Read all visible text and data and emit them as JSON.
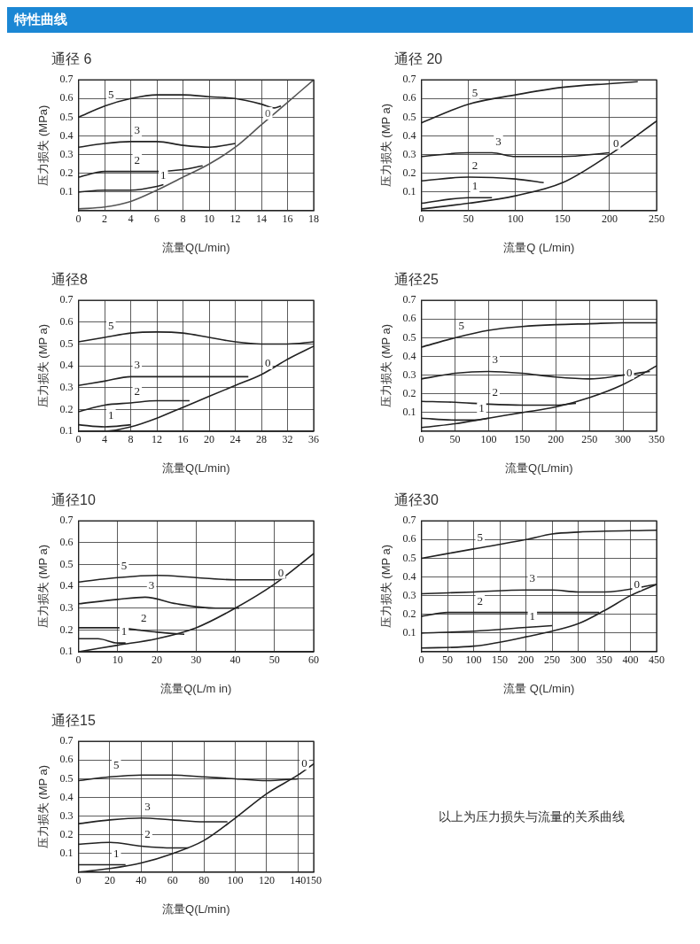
{
  "chart_data": [
    {
      "type": "other",
      "title": "特性曲线"
    },
    {
      "type": "line",
      "title": "通径 6",
      "xlabel": "流量Q(L/min)",
      "ylabel": "压力损失 (MPa)",
      "xlim": [
        0,
        18
      ],
      "xticks": [
        0,
        2,
        4,
        6,
        8,
        10,
        12,
        14,
        16,
        18
      ],
      "ylim": [
        0,
        0.7
      ],
      "yticks": [
        0.1,
        0.2,
        0.3,
        0.4,
        0.5,
        0.6,
        0.7
      ],
      "grid": true,
      "marker": "none",
      "series": [
        {
          "name": "5",
          "color": "#222222",
          "x": [
            0,
            2,
            4,
            6,
            8,
            10,
            12,
            14,
            15,
            15.5
          ],
          "values": [
            0.5,
            0.56,
            0.6,
            0.62,
            0.62,
            0.61,
            0.6,
            0.57,
            0.55,
            0.56
          ]
        },
        {
          "name": "3",
          "color": "#222222",
          "x": [
            0,
            2,
            4,
            6,
            8,
            10,
            12
          ],
          "values": [
            0.34,
            0.36,
            0.37,
            0.37,
            0.35,
            0.34,
            0.36
          ]
        },
        {
          "name": "2",
          "color": "#222222",
          "x": [
            0,
            2,
            4,
            6,
            8,
            9.5
          ],
          "values": [
            0.18,
            0.21,
            0.21,
            0.21,
            0.22,
            0.24
          ]
        },
        {
          "name": "1",
          "color": "#222222",
          "x": [
            0,
            2,
            4,
            6,
            6.5
          ],
          "values": [
            0.1,
            0.11,
            0.11,
            0.13,
            0.14
          ]
        },
        {
          "name": "0",
          "color": "#555555",
          "x": [
            0,
            2,
            4,
            6,
            8,
            10,
            12,
            14,
            16,
            18
          ],
          "values": [
            0.01,
            0.02,
            0.05,
            0.11,
            0.18,
            0.25,
            0.34,
            0.46,
            0.58,
            0.7
          ]
        }
      ]
    },
    {
      "type": "line",
      "title": "通径 20",
      "xlabel": "流量Q (L/min)",
      "ylabel": "压力损失 (MP a)",
      "xlim": [
        0,
        250
      ],
      "xticks": [
        0,
        50,
        100,
        150,
        200,
        250
      ],
      "ylim": [
        0,
        0.7
      ],
      "yticks": [
        0.1,
        0.2,
        0.3,
        0.4,
        0.5,
        0.6,
        0.7
      ],
      "grid": true,
      "marker": "none",
      "series": [
        {
          "name": "5",
          "color": "#222222",
          "x": [
            0,
            50,
            100,
            150,
            200,
            230
          ],
          "values": [
            0.47,
            0.57,
            0.62,
            0.66,
            0.68,
            0.69
          ]
        },
        {
          "name": "3",
          "color": "#222222",
          "x": [
            0,
            50,
            75,
            100,
            150,
            200
          ],
          "values": [
            0.29,
            0.31,
            0.31,
            0.29,
            0.29,
            0.31
          ]
        },
        {
          "name": "2",
          "color": "#222222",
          "x": [
            0,
            50,
            100,
            130
          ],
          "values": [
            0.16,
            0.18,
            0.17,
            0.15
          ]
        },
        {
          "name": "1",
          "color": "#222222",
          "x": [
            0,
            50,
            75
          ],
          "values": [
            0.04,
            0.07,
            0.07
          ]
        },
        {
          "name": "0",
          "color": "#222222",
          "x": [
            0,
            50,
            100,
            150,
            200,
            250
          ],
          "values": [
            0.01,
            0.04,
            0.08,
            0.15,
            0.3,
            0.48
          ]
        }
      ]
    },
    {
      "type": "line",
      "title": "通径8",
      "xlabel": "流量Q(L/min)",
      "ylabel": "压力损失 (MP a)",
      "xlim": [
        0,
        36
      ],
      "xticks": [
        0,
        4,
        8,
        12,
        16,
        20,
        24,
        28,
        32,
        36
      ],
      "ylim": [
        0.1,
        0.7
      ],
      "yticks": [
        0.1,
        0.2,
        0.3,
        0.4,
        0.5,
        0.6,
        0.7
      ],
      "grid": true,
      "marker": "none",
      "series": [
        {
          "name": "5",
          "color": "#222222",
          "x": [
            0,
            4,
            8,
            12,
            16,
            20,
            24,
            28,
            32,
            36
          ],
          "values": [
            0.51,
            0.53,
            0.55,
            0.555,
            0.55,
            0.53,
            0.51,
            0.5,
            0.5,
            0.51
          ]
        },
        {
          "name": "3",
          "color": "#222222",
          "x": [
            0,
            4,
            8,
            12,
            20,
            26
          ],
          "values": [
            0.31,
            0.33,
            0.35,
            0.35,
            0.35,
            0.35
          ]
        },
        {
          "name": "2",
          "color": "#222222",
          "x": [
            0,
            4,
            8,
            12,
            17
          ],
          "values": [
            0.19,
            0.22,
            0.23,
            0.24,
            0.24
          ]
        },
        {
          "name": "1",
          "color": "#222222",
          "x": [
            0,
            4,
            8
          ],
          "values": [
            0.13,
            0.12,
            0.13
          ]
        },
        {
          "name": "0",
          "color": "#222222",
          "x": [
            0,
            4,
            8,
            12,
            16,
            20,
            24,
            28,
            32,
            36
          ],
          "values": [
            0.1,
            0.1,
            0.12,
            0.16,
            0.21,
            0.26,
            0.31,
            0.36,
            0.43,
            0.49
          ]
        }
      ]
    },
    {
      "type": "line",
      "title": "通径25",
      "xlabel": "流量Q(L/min)",
      "ylabel": "压力损失 (MP a)",
      "xlim": [
        0,
        350
      ],
      "xticks": [
        0,
        50,
        100,
        150,
        200,
        250,
        300,
        350
      ],
      "ylim": [
        0,
        0.7
      ],
      "yticks": [
        0.1,
        0.2,
        0.3,
        0.4,
        0.5,
        0.6,
        0.7
      ],
      "grid": true,
      "marker": "none",
      "series": [
        {
          "name": "5",
          "color": "#222222",
          "x": [
            0,
            50,
            100,
            150,
            200,
            250,
            300,
            350
          ],
          "values": [
            0.45,
            0.5,
            0.54,
            0.56,
            0.57,
            0.575,
            0.58,
            0.58
          ]
        },
        {
          "name": "3",
          "color": "#222222",
          "x": [
            0,
            50,
            100,
            150,
            200,
            250,
            300,
            340
          ],
          "values": [
            0.28,
            0.31,
            0.32,
            0.31,
            0.29,
            0.28,
            0.3,
            0.32
          ]
        },
        {
          "name": "2",
          "color": "#222222",
          "x": [
            0,
            50,
            100,
            150,
            200,
            230
          ],
          "values": [
            0.16,
            0.155,
            0.145,
            0.14,
            0.14,
            0.15
          ]
        },
        {
          "name": "1",
          "color": "#222222",
          "x": [
            0,
            50,
            80,
            100
          ],
          "values": [
            0.07,
            0.06,
            0.06,
            0.07
          ]
        },
        {
          "name": "0",
          "color": "#222222",
          "x": [
            0,
            50,
            100,
            150,
            200,
            250,
            300,
            350
          ],
          "values": [
            0.02,
            0.04,
            0.07,
            0.1,
            0.13,
            0.18,
            0.25,
            0.35
          ]
        }
      ]
    },
    {
      "type": "line",
      "title": "通径10",
      "xlabel": "流量Q(L/m in)",
      "ylabel": "压力损失 (MP a)",
      "xlim": [
        0,
        60
      ],
      "xticks": [
        0,
        10,
        20,
        30,
        40,
        50,
        60
      ],
      "ylim": [
        0.1,
        0.7
      ],
      "yticks": [
        0.1,
        0.2,
        0.3,
        0.4,
        0.5,
        0.6,
        0.7
      ],
      "grid": true,
      "marker": "none",
      "series": [
        {
          "name": "5",
          "color": "#222222",
          "x": [
            0,
            10,
            20,
            30,
            40,
            50,
            53
          ],
          "values": [
            0.42,
            0.44,
            0.45,
            0.44,
            0.43,
            0.43,
            0.44
          ]
        },
        {
          "name": "3",
          "color": "#222222",
          "x": [
            0,
            10,
            17,
            25,
            35,
            41
          ],
          "values": [
            0.32,
            0.34,
            0.35,
            0.32,
            0.3,
            0.3
          ]
        },
        {
          "name": "2",
          "color": "#222222",
          "x": [
            0,
            10,
            15,
            20,
            27
          ],
          "values": [
            0.21,
            0.21,
            0.2,
            0.19,
            0.18
          ]
        },
        {
          "name": "1",
          "color": "#222222",
          "x": [
            0,
            5,
            10,
            12
          ],
          "values": [
            0.16,
            0.16,
            0.14,
            0.14
          ]
        },
        {
          "name": "0",
          "color": "#222222",
          "x": [
            0,
            10,
            20,
            30,
            40,
            50,
            60
          ],
          "values": [
            0.1,
            0.13,
            0.16,
            0.21,
            0.3,
            0.41,
            0.55
          ]
        }
      ]
    },
    {
      "type": "line",
      "title": "通径30",
      "xlabel": "流量 Q(L/min)",
      "ylabel": "压力损失 (MP a)",
      "xlim": [
        0,
        450
      ],
      "xticks": [
        0,
        50,
        100,
        150,
        200,
        250,
        300,
        350,
        400,
        450
      ],
      "ylim": [
        0,
        0.7
      ],
      "yticks": [
        0.1,
        0.2,
        0.3,
        0.4,
        0.5,
        0.6,
        0.7
      ],
      "grid": true,
      "marker": "none",
      "series": [
        {
          "name": "5",
          "color": "#222222",
          "x": [
            0,
            100,
            200,
            250,
            300,
            450
          ],
          "values": [
            0.5,
            0.55,
            0.6,
            0.63,
            0.64,
            0.65
          ]
        },
        {
          "name": "3",
          "color": "#222222",
          "x": [
            0,
            100,
            200,
            250,
            300,
            350,
            450
          ],
          "values": [
            0.31,
            0.32,
            0.33,
            0.33,
            0.32,
            0.32,
            0.36
          ]
        },
        {
          "name": "2",
          "color": "#222222",
          "x": [
            0,
            50,
            100,
            200,
            340
          ],
          "values": [
            0.19,
            0.21,
            0.21,
            0.21,
            0.21
          ]
        },
        {
          "name": "1",
          "color": "#222222",
          "x": [
            0,
            100,
            200,
            250
          ],
          "values": [
            0.1,
            0.11,
            0.13,
            0.14
          ]
        },
        {
          "name": "0",
          "color": "#222222",
          "x": [
            0,
            100,
            200,
            300,
            350,
            400,
            450
          ],
          "values": [
            0.02,
            0.03,
            0.08,
            0.15,
            0.22,
            0.3,
            0.36
          ]
        }
      ]
    },
    {
      "type": "line",
      "title": "通径15",
      "xlabel": "流量Q(L/min)",
      "ylabel": "压力损失 (MP a)",
      "xlim": [
        0,
        150
      ],
      "xticks": [
        0,
        20,
        40,
        60,
        80,
        100,
        120,
        140,
        150
      ],
      "ylim": [
        0,
        0.7
      ],
      "yticks": [
        0.1,
        0.2,
        0.3,
        0.4,
        0.5,
        0.6,
        0.7
      ],
      "grid": true,
      "marker": "none",
      "series": [
        {
          "name": "5",
          "color": "#222222",
          "x": [
            0,
            20,
            40,
            60,
            80,
            100,
            120,
            140
          ],
          "values": [
            0.49,
            0.51,
            0.52,
            0.52,
            0.51,
            0.5,
            0.49,
            0.5
          ]
        },
        {
          "name": "3",
          "color": "#222222",
          "x": [
            0,
            20,
            40,
            60,
            80,
            95
          ],
          "values": [
            0.26,
            0.28,
            0.29,
            0.28,
            0.27,
            0.27
          ]
        },
        {
          "name": "2",
          "color": "#222222",
          "x": [
            0,
            20,
            40,
            60,
            70
          ],
          "values": [
            0.15,
            0.16,
            0.14,
            0.13,
            0.13
          ]
        },
        {
          "name": "1",
          "color": "#222222",
          "x": [
            0,
            20,
            30
          ],
          "values": [
            0.04,
            0.04,
            0.04
          ]
        },
        {
          "name": "0",
          "color": "#222222",
          "x": [
            0,
            20,
            40,
            60,
            80,
            100,
            120,
            140,
            150
          ],
          "values": [
            0,
            0.02,
            0.05,
            0.1,
            0.17,
            0.29,
            0.42,
            0.52,
            0.58
          ]
        }
      ]
    },
    {
      "type": "other",
      "annotations": [
        "以上为压力损失与流量的关系曲线"
      ]
    }
  ]
}
